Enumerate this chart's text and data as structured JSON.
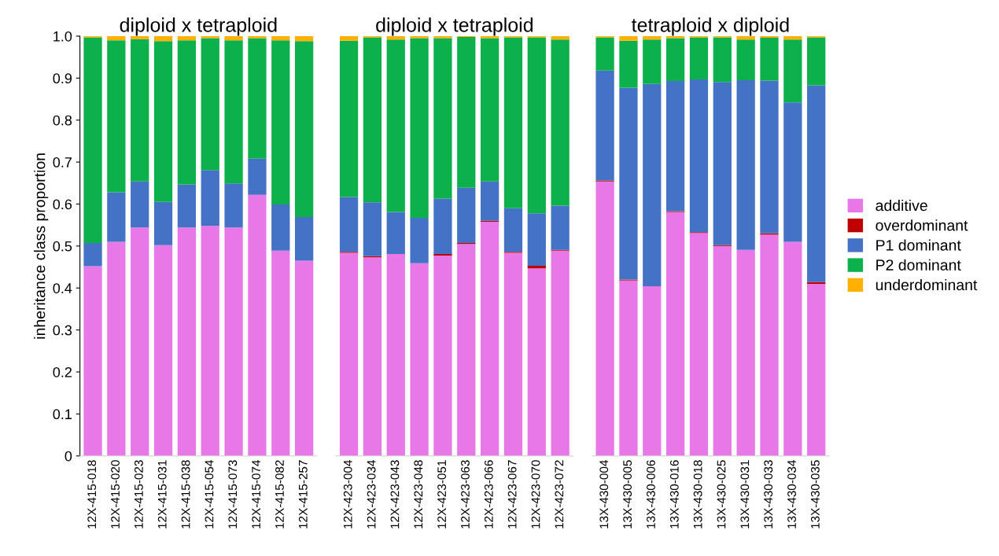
{
  "chart_data": [
    {
      "type": "bar",
      "stacked": true,
      "title": "diploid x tetraploid",
      "ylabel": "inheritance class proportion",
      "categories": [
        "12X-415-018",
        "12X-415-020",
        "12X-415-023",
        "12X-415-031",
        "12X-415-038",
        "12X-415-054",
        "12X-415-073",
        "12X-415-074",
        "12X-415-082",
        "12X-415-257"
      ],
      "ylim": [
        0,
        1.0
      ],
      "yticks": [
        0,
        0.1,
        0.2,
        0.3,
        0.4,
        0.5,
        0.6,
        0.7,
        0.8,
        0.9,
        {
          "value": 1,
          "label": "1.0"
        }
      ],
      "grid": false,
      "legend": false,
      "series": [
        {
          "color": "#e878e8",
          "values": [
            0.452,
            0.51,
            0.544,
            0.502,
            0.544,
            0.548,
            0.544,
            0.622,
            0.489,
            0.465
          ]
        },
        {
          "color": "#c00000",
          "values": [
            0,
            0,
            0,
            0,
            0,
            0,
            0,
            0,
            0,
            0
          ]
        },
        {
          "color": "#4472c4",
          "values": [
            0.055,
            0.118,
            0.11,
            0.103,
            0.103,
            0.133,
            0.105,
            0.086,
            0.11,
            0.104
          ]
        },
        {
          "color": "#0db14b",
          "values": [
            0.49,
            0.362,
            0.339,
            0.383,
            0.343,
            0.314,
            0.341,
            0.287,
            0.391,
            0.419
          ]
        },
        {
          "color": "#ffb000",
          "values": [
            0.003,
            0.01,
            0.007,
            0.012,
            0.01,
            0.005,
            0.01,
            0.005,
            0.01,
            0.012
          ]
        }
      ]
    },
    {
      "type": "bar",
      "stacked": true,
      "title": "diploid x tetraploid",
      "categories": [
        "12X-423-004",
        "12X-423-034",
        "12X-423-043",
        "12X-423-048",
        "12X-423-051",
        "12X-423-063",
        "12X-423-066",
        "12X-423-067",
        "12X-423-070",
        "12X-423-072"
      ],
      "ylim": [
        0,
        1.0
      ],
      "tick_labels": "x",
      "grid": false,
      "legend": false,
      "series": [
        {
          "color": "#e878e8",
          "values": [
            0.484,
            0.473,
            0.481,
            0.459,
            0.477,
            0.505,
            0.558,
            0.484,
            0.447,
            0.489
          ]
        },
        {
          "color": "#c00000",
          "values": [
            0.002,
            0.003,
            0,
            0,
            0.004,
            0.002,
            0.002,
            0.002,
            0.006,
            0.002
          ]
        },
        {
          "color": "#4472c4",
          "values": [
            0.131,
            0.128,
            0.1,
            0.108,
            0.132,
            0.132,
            0.094,
            0.104,
            0.125,
            0.105
          ]
        },
        {
          "color": "#0db14b",
          "values": [
            0.372,
            0.393,
            0.411,
            0.428,
            0.382,
            0.359,
            0.341,
            0.407,
            0.419,
            0.396
          ]
        },
        {
          "color": "#ffb000",
          "values": [
            0.011,
            0.003,
            0.008,
            0.005,
            0.005,
            0.003,
            0.005,
            0.003,
            0.003,
            0.008
          ]
        }
      ]
    },
    {
      "type": "bar",
      "stacked": true,
      "title": "tetraploid x diploid",
      "categories": [
        "13X-430-004",
        "13X-430-005",
        "13X-430-006",
        "13X-430-016",
        "13X-430-018",
        "13X-430-025",
        "13X-430-031",
        "13X-430-033",
        "13X-430-034",
        "13X-430-035"
      ],
      "ylim": [
        0,
        1.0
      ],
      "tick_labels": "x",
      "grid": false,
      "legend": "right",
      "series": [
        {
          "name": "additive",
          "color": "#e878e8",
          "values": [
            0.654,
            0.418,
            0.404,
            0.581,
            0.531,
            0.5,
            0.491,
            0.527,
            0.51,
            0.41
          ]
        },
        {
          "name": "overdominant",
          "color": "#c00000",
          "values": [
            0.002,
            0.002,
            0,
            0.002,
            0.002,
            0.002,
            0,
            0.003,
            0,
            0.004
          ]
        },
        {
          "name": "P1 dominant",
          "color": "#4472c4",
          "values": [
            0.262,
            0.457,
            0.482,
            0.31,
            0.364,
            0.389,
            0.404,
            0.364,
            0.332,
            0.469
          ]
        },
        {
          "name": "P2 dominant",
          "color": "#0db14b",
          "values": [
            0.079,
            0.112,
            0.106,
            0.102,
            0.1,
            0.106,
            0.097,
            0.102,
            0.15,
            0.114
          ]
        },
        {
          "name": "underdominant",
          "color": "#ffb000",
          "values": [
            0.003,
            0.011,
            0.008,
            0.005,
            0.003,
            0.003,
            0.008,
            0.005,
            0.008,
            0.003
          ]
        }
      ]
    }
  ]
}
